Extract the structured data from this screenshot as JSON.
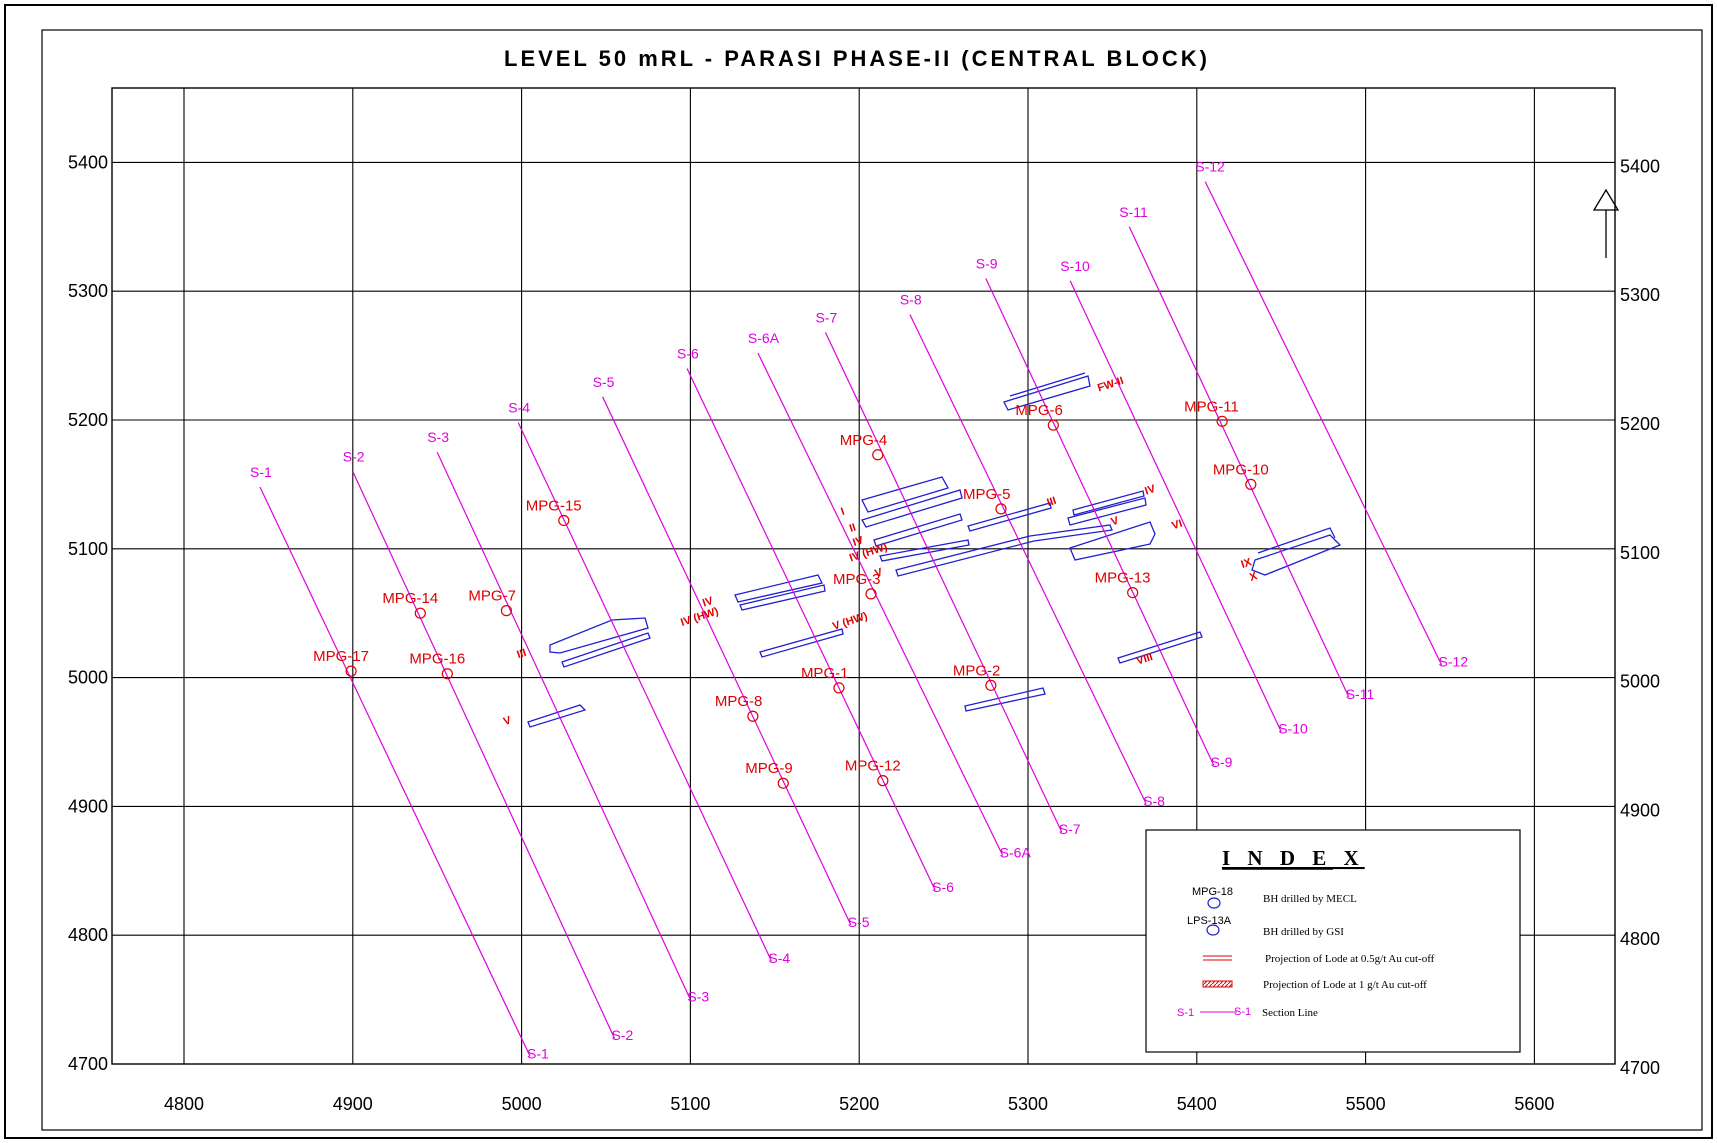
{
  "title": "LEVEL 50 mRL   -  PARASI PHASE-II (CENTRAL BLOCK)",
  "colors": {
    "section": "#e000e0",
    "borehole": "#e00000",
    "lode": "#2020d0",
    "grid": "#000000"
  },
  "x_ticks": [
    "4800",
    "4900",
    "5000",
    "5100",
    "5200",
    "5300",
    "5400",
    "5500",
    "5600"
  ],
  "y_ticks": [
    "5400",
    "5300",
    "5200",
    "5100",
    "5000",
    "4900",
    "4800",
    "4700"
  ],
  "sections": [
    {
      "top": "S-1",
      "bottom": "S-1",
      "x0": 4845,
      "y0": 5148,
      "x1": 5005,
      "y1": 4706
    },
    {
      "top": "S-2",
      "bottom": "S-2",
      "x0": 4900,
      "y0": 5160,
      "x1": 5055,
      "y1": 4720
    },
    {
      "top": "S-3",
      "bottom": "S-3",
      "x0": 4950,
      "y0": 5175,
      "x1": 5100,
      "y1": 4750
    },
    {
      "top": "S-4",
      "bottom": "S-4",
      "x0": 4998,
      "y0": 5198,
      "x1": 5148,
      "y1": 4780
    },
    {
      "top": "S-5",
      "bottom": "S-5",
      "x0": 5048,
      "y0": 5218,
      "x1": 5195,
      "y1": 4808
    },
    {
      "top": "S-6",
      "bottom": "S-6",
      "x0": 5098,
      "y0": 5240,
      "x1": 5245,
      "y1": 4835
    },
    {
      "top": "S-6A",
      "bottom": "S-6A",
      "x0": 5140,
      "y0": 5252,
      "x1": 5285,
      "y1": 4862
    },
    {
      "top": "S-7",
      "bottom": "S-7",
      "x0": 5180,
      "y0": 5268,
      "x1": 5320,
      "y1": 4880
    },
    {
      "top": "S-8",
      "bottom": "S-8",
      "x0": 5230,
      "y0": 5282,
      "x1": 5370,
      "y1": 4902
    },
    {
      "top": "S-9",
      "bottom": "S-9",
      "x0": 5275,
      "y0": 5310,
      "x1": 5410,
      "y1": 4932
    },
    {
      "top": "S-10",
      "bottom": "S-10",
      "x0": 5325,
      "y0": 5308,
      "x1": 5450,
      "y1": 4958
    },
    {
      "top": "S-11",
      "bottom": "S-11",
      "x0": 5360,
      "y0": 5350,
      "x1": 5490,
      "y1": 4985
    },
    {
      "top": "S-12",
      "bottom": "S-12",
      "x0": 5405,
      "y0": 5385,
      "x1": 5545,
      "y1": 5010
    }
  ],
  "boreholes": [
    {
      "name": "MPG-1",
      "x": 5188,
      "y": 4992
    },
    {
      "name": "MPG-2",
      "x": 5278,
      "y": 4994
    },
    {
      "name": "MPG-3",
      "x": 5207,
      "y": 5065
    },
    {
      "name": "MPG-4",
      "x": 5211,
      "y": 5173
    },
    {
      "name": "MPG-5",
      "x": 5284,
      "y": 5131
    },
    {
      "name": "MPG-6",
      "x": 5315,
      "y": 5196
    },
    {
      "name": "MPG-7",
      "x": 4991,
      "y": 5052
    },
    {
      "name": "MPG-8",
      "x": 5137,
      "y": 4970
    },
    {
      "name": "MPG-9",
      "x": 5155,
      "y": 4918
    },
    {
      "name": "MPG-10",
      "x": 5432,
      "y": 5150
    },
    {
      "name": "MPG-11",
      "x": 5415,
      "y": 5199
    },
    {
      "name": "MPG-12",
      "x": 5214,
      "y": 4920
    },
    {
      "name": "MPG-13",
      "x": 5362,
      "y": 5066
    },
    {
      "name": "MPG-14",
      "x": 4940,
      "y": 5050
    },
    {
      "name": "MPG-15",
      "x": 5025,
      "y": 5122
    },
    {
      "name": "MPG-16",
      "x": 4956,
      "y": 5003
    },
    {
      "name": "MPG-17",
      "x": 4899,
      "y": 5005
    }
  ],
  "lode_labels": [
    {
      "text": "FW-II",
      "x": 5342,
      "y": 5222
    },
    {
      "text": "III",
      "x": 5312,
      "y": 5133
    },
    {
      "text": "IV",
      "x": 5370,
      "y": 5142
    },
    {
      "text": "V",
      "x": 5350,
      "y": 5118
    },
    {
      "text": "VI",
      "x": 5386,
      "y": 5115
    },
    {
      "text": "I",
      "x": 5190,
      "y": 5126
    },
    {
      "text": "II",
      "x": 5195,
      "y": 5113
    },
    {
      "text": "IV",
      "x": 5197,
      "y": 5102
    },
    {
      "text": "IV (HW)",
      "x": 5195,
      "y": 5090
    },
    {
      "text": "V",
      "x": 5210,
      "y": 5078
    },
    {
      "text": "IV",
      "x": 5108,
      "y": 5055
    },
    {
      "text": "IV (HW)",
      "x": 5095,
      "y": 5040
    },
    {
      "text": "V (HW)",
      "x": 5185,
      "y": 5037
    },
    {
      "text": "III",
      "x": 4998,
      "y": 5015
    },
    {
      "text": "V",
      "x": 4990,
      "y": 4963
    },
    {
      "text": "VIII",
      "x": 5365,
      "y": 5010
    },
    {
      "text": "IX",
      "x": 5427,
      "y": 5085
    },
    {
      "text": "X",
      "x": 5432,
      "y": 5075
    }
  ],
  "index": {
    "title": "I N D E X",
    "mecl_sym": "MPG-18",
    "mecl_txt": "BH drilled by MECL",
    "gsi_sym": "LPS-13A",
    "gsi_txt": "BH drilled by GSI",
    "lode05_txt": "Projection of Lode at 0.5g/t Au cut-off",
    "lode1_txt": "Projection of Lode at 1 g/t Au cut-off",
    "sec_sym_a": "S-1",
    "sec_sym_b": "S-1",
    "sec_txt": "Section Line"
  }
}
